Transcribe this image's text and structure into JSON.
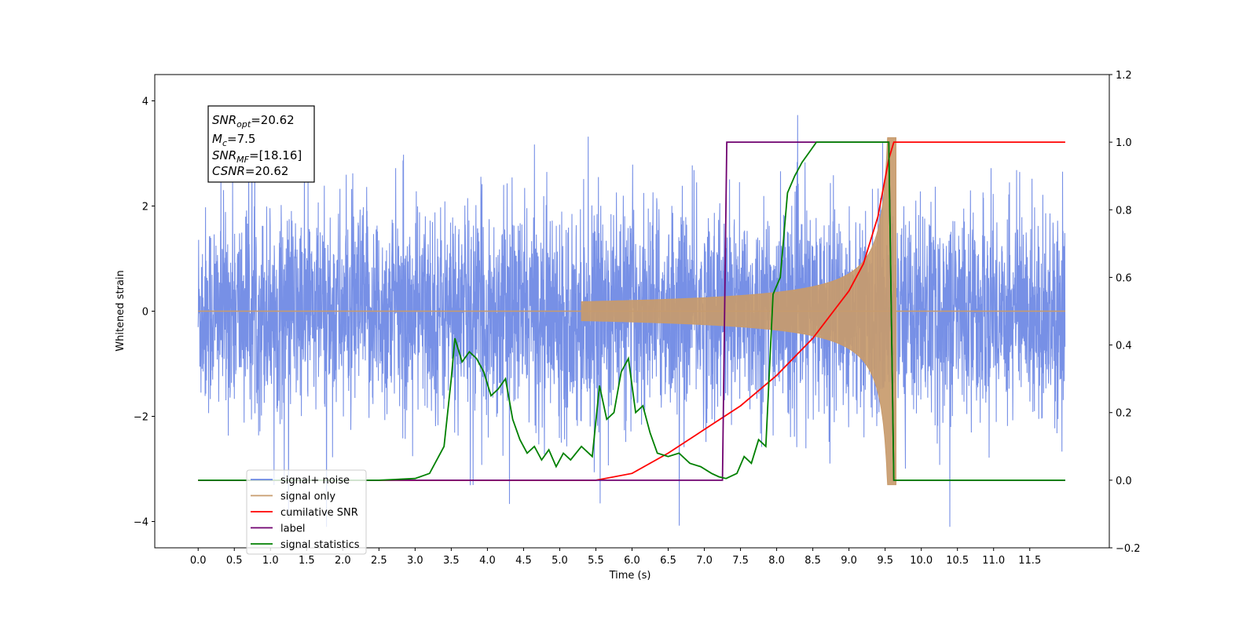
{
  "chart_data": {
    "type": "line",
    "title": "",
    "xlabel": "Time (s)",
    "ylabel": "Whitened strain",
    "xlim": [
      -0.6,
      12.6
    ],
    "ylim": [
      -4.5,
      4.5
    ],
    "y2lim": [
      -0.2,
      1.2
    ],
    "grid": false,
    "legend_position": "lower-left",
    "x_ticks": [
      "0.0",
      "0.5",
      "1.0",
      "1.5",
      "2.0",
      "2.5",
      "3.0",
      "3.5",
      "4.0",
      "4.5",
      "5.0",
      "5.5",
      "6.0",
      "6.5",
      "7.0",
      "7.5",
      "8.0",
      "8.5",
      "9.0",
      "9.5",
      "10.0",
      "10.5",
      "11.0",
      "11.5"
    ],
    "y_ticks": [
      "−4",
      "−2",
      "0",
      "2",
      "4"
    ],
    "y2_ticks": [
      "−0.2",
      "0.0",
      "0.2",
      "0.4",
      "0.6",
      "0.8",
      "1.0",
      "1.2"
    ],
    "annotation": {
      "snr_opt": {
        "base": "SNR",
        "sub": "opt",
        "value": "=20.62"
      },
      "mc": {
        "base": "M",
        "sub": "c",
        "value": "=7.5"
      },
      "snr_mf": {
        "base": "SNR",
        "sub": "MF",
        "value": "=[18.16]"
      },
      "csnr": {
        "base": "CSNR",
        "sub": "",
        "value": "=20.62"
      }
    },
    "series": [
      {
        "name": "signal+ noise",
        "axis": "left",
        "color": "#6b87e4",
        "style": "noise",
        "values": {
          "t_start": 0.0,
          "t_end": 11.99,
          "typical_amplitude": 1.3,
          "max": 4.12,
          "min": -4.1
        }
      },
      {
        "name": "signal only",
        "axis": "left",
        "color": "#c89b6d",
        "style": "chirp",
        "values": {
          "t_start": 5.3,
          "t_peak": 9.6,
          "peak_amplitude": 3.3
        }
      },
      {
        "name": "cumilative SNR",
        "axis": "right",
        "color": "#ff0000",
        "x": [
          0.0,
          5.5,
          6.0,
          6.5,
          7.0,
          7.5,
          8.0,
          8.5,
          9.0,
          9.2,
          9.4,
          9.55,
          9.62,
          11.99
        ],
        "y": [
          0.0,
          0.0,
          0.02,
          0.08,
          0.15,
          0.22,
          0.31,
          0.42,
          0.56,
          0.64,
          0.78,
          0.95,
          1.0,
          1.0
        ]
      },
      {
        "name": "label",
        "axis": "right",
        "color": "#6f006f",
        "x": [
          0.0,
          7.25,
          7.31,
          9.55,
          9.62,
          11.99
        ],
        "y": [
          0.0,
          0.0,
          1.0,
          1.0,
          0.0,
          0.0
        ]
      },
      {
        "name": "signal statistics",
        "axis": "right",
        "color": "#008000",
        "x": [
          0.0,
          2.5,
          3.0,
          3.2,
          3.4,
          3.5,
          3.55,
          3.65,
          3.75,
          3.85,
          3.95,
          4.05,
          4.15,
          4.25,
          4.35,
          4.45,
          4.55,
          4.65,
          4.75,
          4.85,
          4.95,
          5.05,
          5.15,
          5.3,
          5.45,
          5.55,
          5.65,
          5.75,
          5.85,
          5.95,
          6.05,
          6.15,
          6.25,
          6.35,
          6.5,
          6.65,
          6.8,
          6.95,
          7.1,
          7.2,
          7.3,
          7.45,
          7.55,
          7.65,
          7.75,
          7.85,
          7.95,
          8.05,
          8.15,
          8.25,
          8.35,
          8.45,
          8.55,
          8.7,
          9.55,
          9.62,
          11.99
        ],
        "y": [
          0.0,
          0.0,
          0.005,
          0.02,
          0.1,
          0.3,
          0.42,
          0.35,
          0.38,
          0.36,
          0.32,
          0.25,
          0.27,
          0.3,
          0.18,
          0.12,
          0.08,
          0.1,
          0.06,
          0.09,
          0.04,
          0.08,
          0.06,
          0.1,
          0.07,
          0.28,
          0.18,
          0.2,
          0.32,
          0.36,
          0.2,
          0.22,
          0.14,
          0.08,
          0.07,
          0.08,
          0.05,
          0.04,
          0.02,
          0.01,
          0.005,
          0.02,
          0.07,
          0.05,
          0.12,
          0.1,
          0.55,
          0.6,
          0.85,
          0.9,
          0.94,
          0.97,
          1.0,
          1.0,
          1.0,
          0.0,
          0.0
        ]
      }
    ]
  }
}
